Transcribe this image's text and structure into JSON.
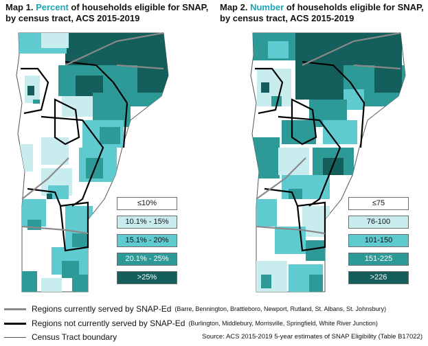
{
  "map1": {
    "title_prefix": "Map 1. ",
    "title_accent": "Percent",
    "title_rest": " of households eligible for SNAP, by census tract, ACS 2015-2019",
    "legend": [
      "≤10%",
      "10.1% - 15%",
      "15.1% - 20%",
      "20.1% - 25%",
      ">25%"
    ]
  },
  "map2": {
    "title_prefix": "Map 2. ",
    "title_accent": "Number",
    "title_rest": " of households eligible for SNAP, by census tract, ACS 2015-2019",
    "legend": [
      "≤75",
      "76-100",
      "101-150",
      "151-225",
      ">226"
    ]
  },
  "colors": {
    "accent": "#1aa7b5",
    "class1": "#ffffff",
    "class2": "#c9ecef",
    "class3": "#5fcbd0",
    "class4": "#2e9a98",
    "class5": "#145e5b",
    "served_line": "#8a8a8a",
    "not_served_line": "#000000"
  },
  "reference": {
    "served_label": "Regions currently served by SNAP-Ed",
    "served_list": "(Barre, Bennington, Brattleboro, Newport, Rutland, St. Albans, St. Johnsbury)",
    "not_served_label": "Regions not currently served by SNAP-Ed",
    "not_served_list": "(Burlington, Middlebury, Morrisville, Springfield, White River Junction)",
    "tract_label": "Census Tract boundary"
  },
  "source": "Source: ACS 2015-2019 5-year estimates of SNAP Eligibility (Table B17022)"
}
